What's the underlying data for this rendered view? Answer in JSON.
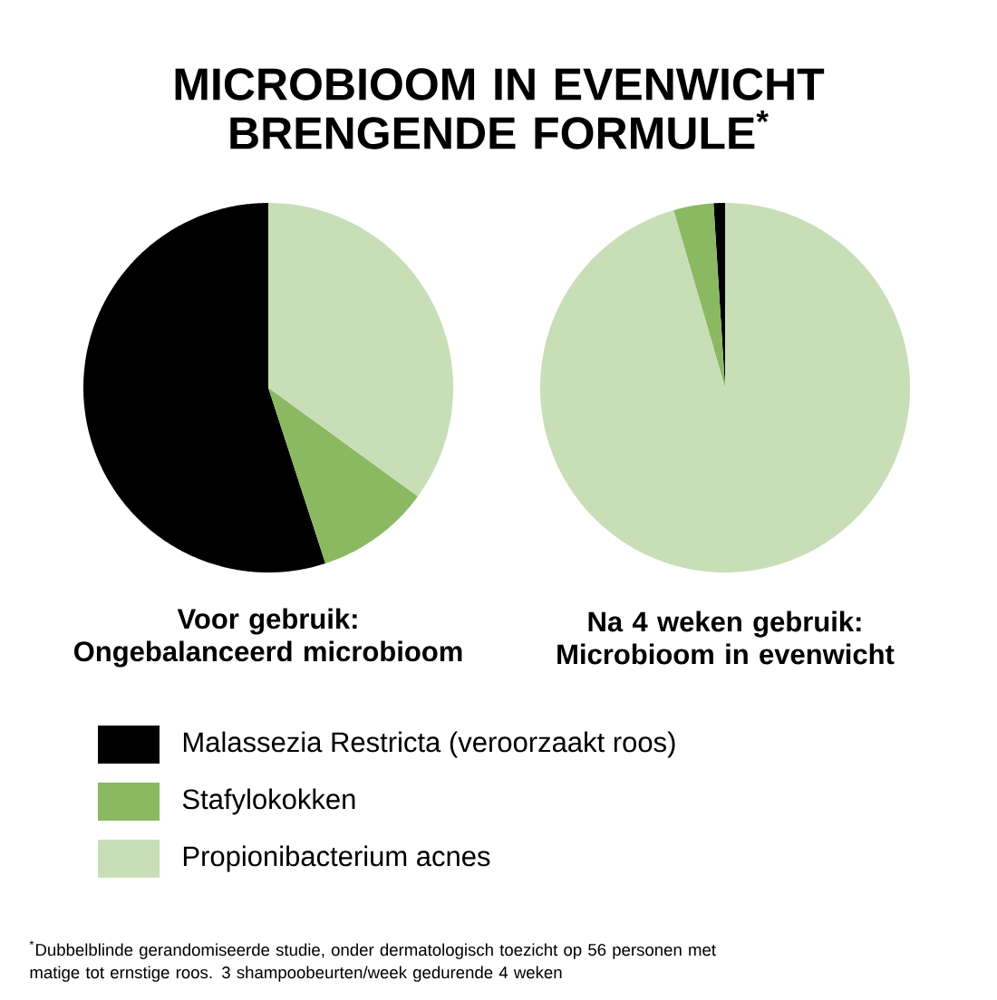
{
  "chart_data": [
    {
      "type": "pie",
      "title": "MICROBIOOM IN EVENWICHT BRENGENDE FORMULE$^{*}$",
      "xlabel": "Voor gebruik: Ongebalanceerd microbioom",
      "categories": [
        "Malassezia Restricta (veroorzaakt roos)",
        "Stafylokokken",
        "Propionibacterium acnes"
      ],
      "values": [
        55,
        10,
        35
      ],
      "colors": [
        "#000000",
        "#8ab962",
        "#c8deb7"
      ],
      "legend": "bottom",
      "annotations": [
        "$^{*}$Dubbelblinde gerandomiseerde studie, onder dermatologisch toezicht op 56 personen met matige tot ernstige roos. 3 shampoobeurten/week gedurende 4 weken"
      ]
    },
    {
      "type": "pie",
      "xlabel": "Na 4 weken gebruik: Microbioom in evenwicht",
      "categories": [
        null,
        null,
        null
      ],
      "values": [
        1,
        3.5,
        95.5
      ],
      "colors": [
        "#000000",
        "#8ab962",
        "#c8deb7"
      ]
    }
  ]
}
